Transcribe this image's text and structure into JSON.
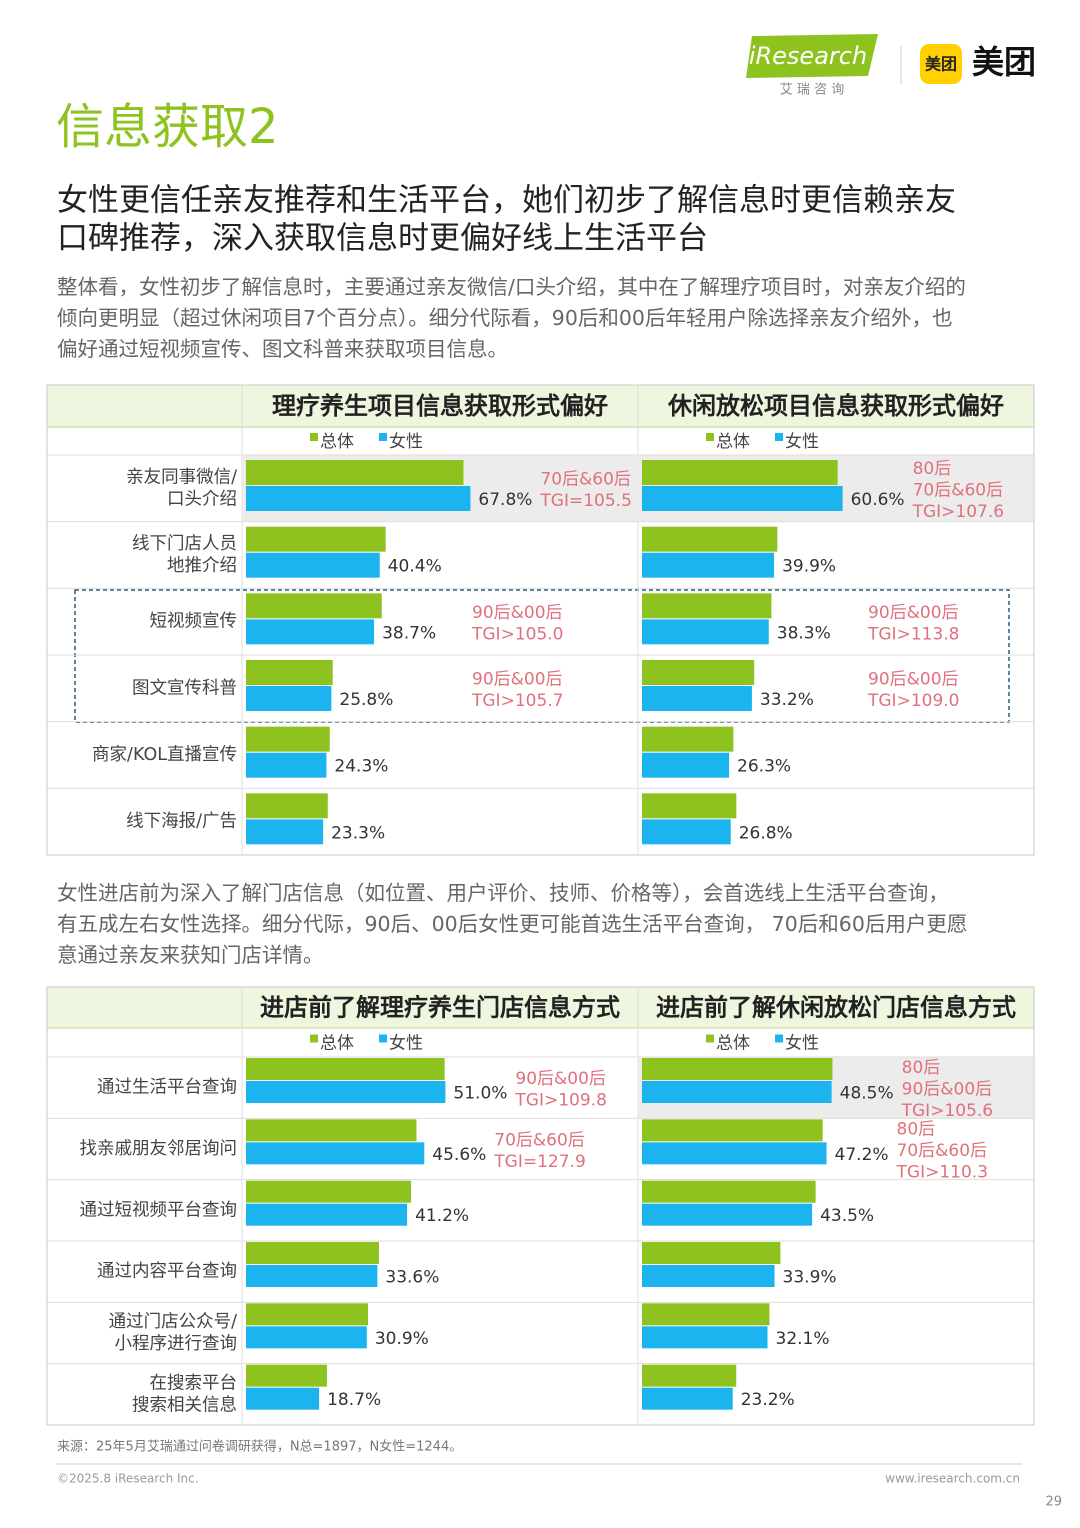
{
  "header": {
    "logo_text": "iResearch",
    "logo_sub": "艾 瑞 咨 询",
    "partner_icon": "美团",
    "partner": "美团"
  },
  "title": "信息获取2",
  "subtitle": [
    "女性更信任亲友推荐和生活平台，她们初步了解信息时更信赖亲友",
    "口碑推荐，深入获取信息时更偏好线上生活平台"
  ],
  "paragraph1": [
    "整体看，女性初步了解信息时，主要通过亲友微信/口头介绍，其中在了解理疗项目时，对亲友介绍的",
    "倾向更明显（超过休闲项目7个百分点）。细分代际看，90后和00后年轻用户除选择亲友介绍外，也",
    "偏好通过短视频宣传、图文科普来获取项目信息。"
  ],
  "paragraph2": [
    "女性进店前为深入了解门店信息（如位置、用户评价、技师、价格等），会首选线上生活平台查询，",
    "有五成左右女性选择。细分代际，90后、00后女性更可能首选生活平台查询， 70后和60后用户更愿",
    "意通过亲友来获知门店详情。"
  ],
  "chart_data": [
    {
      "type": "bar",
      "orientation": "horizontal",
      "title": "理疗养生项目信息获取形式偏好",
      "categories": [
        [
          "亲友同事微信/",
          "口头介绍"
        ],
        [
          "线下门店人员",
          "地推介绍"
        ],
        [
          "短视频宣传"
        ],
        [
          "图文宣传科普"
        ],
        [
          "商家/KOL直播宣传"
        ],
        [
          "线下海报/广告"
        ]
      ],
      "series": [
        {
          "name": "总体",
          "color": "#8dc21f",
          "values": [
            65.7,
            42.2,
            41.0,
            26.2,
            25.3,
            24.7
          ]
        },
        {
          "name": "女性",
          "color": "#1cb4ef",
          "values": [
            67.8,
            40.4,
            38.7,
            25.8,
            24.3,
            23.3
          ],
          "value_labels": [
            "67.8%",
            "40.4%",
            "38.7%",
            "25.8%",
            "24.3%",
            "23.3%"
          ]
        }
      ],
      "annotations": [
        [
          "70后&60后",
          "TGI=105.5"
        ],
        null,
        [
          "90后&00后",
          "TGI>105.0"
        ],
        [
          "90后&00后",
          "TGI>105.7"
        ],
        null,
        null
      ]
    },
    {
      "type": "bar",
      "orientation": "horizontal",
      "title": "休闲放松项目信息获取形式偏好",
      "series": [
        {
          "name": "总体",
          "color": "#8dc21f",
          "values": [
            59.1,
            40.9,
            39.1,
            33.9,
            27.6,
            28.5
          ]
        },
        {
          "name": "女性",
          "color": "#1cb4ef",
          "values": [
            60.6,
            39.9,
            38.3,
            33.2,
            26.3,
            26.8
          ],
          "value_labels": [
            "60.6%",
            "39.9%",
            "38.3%",
            "33.2%",
            "26.3%",
            "26.8%"
          ]
        }
      ],
      "annotations": [
        [
          "80后",
          "70后&60后",
          "TGI>107.6"
        ],
        null,
        [
          "90后&00后",
          "TGI>113.8"
        ],
        [
          "90后&00后",
          "TGI>109.0"
        ],
        null,
        null
      ]
    },
    {
      "type": "bar",
      "orientation": "horizontal",
      "title": "进店前了解理疗养生门店信息方式",
      "categories": [
        [
          "通过生活平台查询"
        ],
        [
          "找亲戚朋友邻居询问"
        ],
        [
          "通过短视频平台查询"
        ],
        [
          "通过内容平台查询"
        ],
        [
          "通过门店公众号/",
          "小程序进行查询"
        ],
        [
          "在搜索平台",
          "搜索相关信息"
        ]
      ],
      "series": [
        {
          "name": "总体",
          "color": "#8dc21f",
          "values": [
            50.8,
            43.6,
            42.2,
            34.0,
            31.2,
            20.7
          ]
        },
        {
          "name": "女性",
          "color": "#1cb4ef",
          "values": [
            51.0,
            45.6,
            41.2,
            33.6,
            30.9,
            18.7
          ],
          "value_labels": [
            "51.0%",
            "45.6%",
            "41.2%",
            "33.6%",
            "30.9%",
            "18.7%"
          ]
        }
      ],
      "annotations": [
        [
          "90后&00后",
          "TGI>109.8"
        ],
        [
          "70后&60后",
          "TGI=127.9"
        ],
        null,
        null,
        null,
        null
      ]
    },
    {
      "type": "bar",
      "orientation": "horizontal",
      "title": "进店前了解休闲放松门店信息方式",
      "series": [
        {
          "name": "总体",
          "color": "#8dc21f",
          "values": [
            48.7,
            46.2,
            44.4,
            35.4,
            32.6,
            24.1
          ]
        },
        {
          "name": "女性",
          "color": "#1cb4ef",
          "values": [
            48.5,
            47.2,
            43.5,
            33.9,
            32.1,
            23.2
          ],
          "value_labels": [
            "48.5%",
            "47.2%",
            "43.5%",
            "33.9%",
            "32.1%",
            "23.2%"
          ]
        }
      ],
      "annotations": [
        [
          "80后",
          "90后&00后",
          "TGI>105.6"
        ],
        [
          "80后",
          "70后&60后",
          "TGI>110.3"
        ],
        null,
        null,
        null,
        null
      ]
    }
  ],
  "source": "来源：25年5月艾瑞通过问卷调研获得，N总=1897，N女性=1244。",
  "copyright": "©2025.8 iResearch Inc.",
  "url": "www.iresearch.com.cn",
  "page_number": 29
}
